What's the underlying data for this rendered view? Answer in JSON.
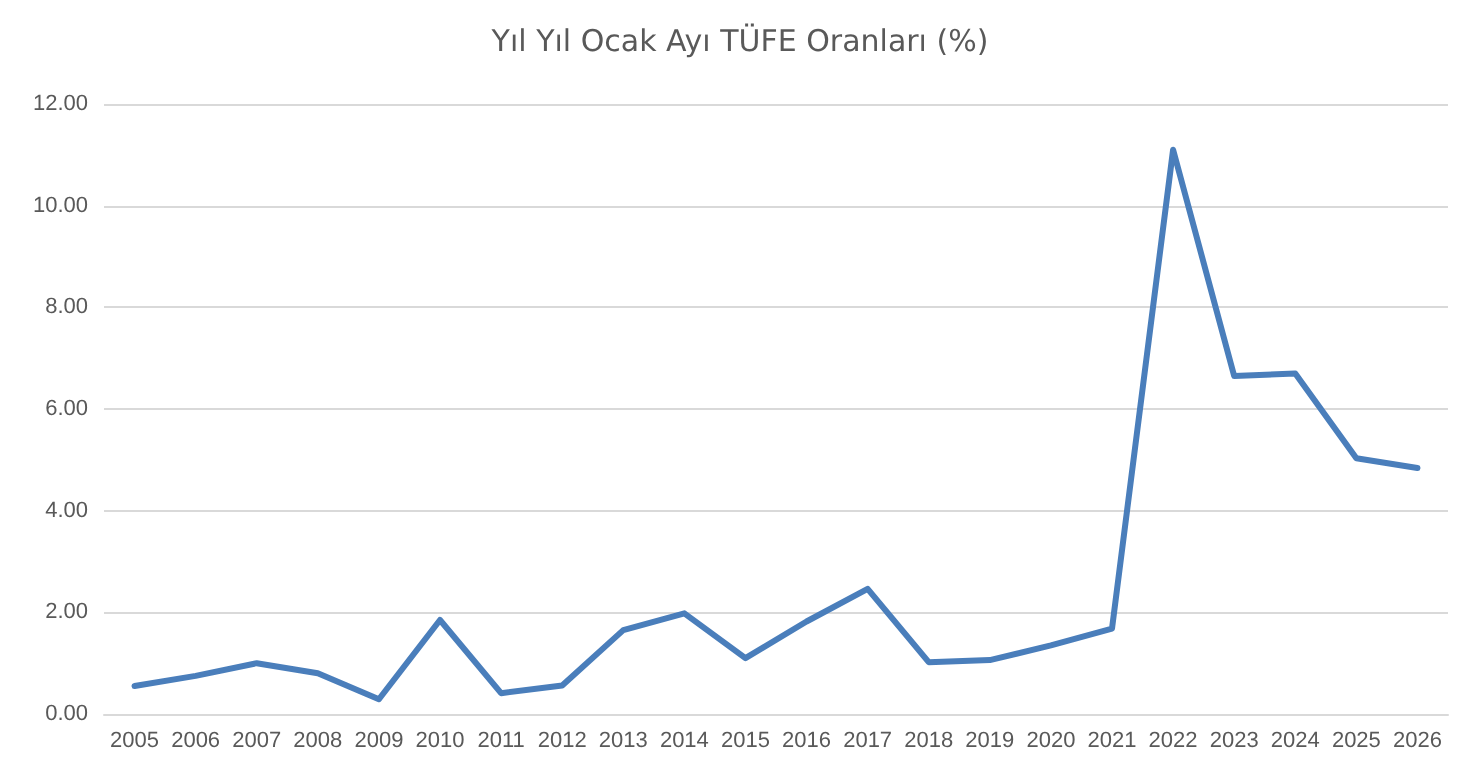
{
  "chart_data": {
    "type": "line",
    "title": "Yıl Yıl Ocak Ayı TÜFE Oranları (%)",
    "categories": [
      "2005",
      "2006",
      "2007",
      "2008",
      "2009",
      "2010",
      "2011",
      "2012",
      "2013",
      "2014",
      "2015",
      "2016",
      "2017",
      "2018",
      "2019",
      "2020",
      "2021",
      "2022",
      "2023",
      "2024",
      "2025",
      "2026"
    ],
    "series": [
      {
        "color": "#4a7ebb",
        "values": [
          0.55,
          0.75,
          1.0,
          0.8,
          0.29,
          1.85,
          0.41,
          0.56,
          1.65,
          1.98,
          1.1,
          1.82,
          2.46,
          1.02,
          1.06,
          1.35,
          1.68,
          11.1,
          6.65,
          6.7,
          5.03,
          4.84
        ]
      }
    ],
    "ylim": [
      0,
      12
    ],
    "yticks": [
      {
        "value": 0,
        "label": "0.00"
      },
      {
        "value": 2,
        "label": "2.00"
      },
      {
        "value": 4,
        "label": "4.00"
      },
      {
        "value": 6,
        "label": "6.00"
      },
      {
        "value": 8,
        "label": "8.00"
      },
      {
        "value": 10,
        "label": "10.00"
      },
      {
        "value": 12,
        "label": "12.00"
      }
    ],
    "grid": "y",
    "marker": "none",
    "line_style": "solid"
  }
}
